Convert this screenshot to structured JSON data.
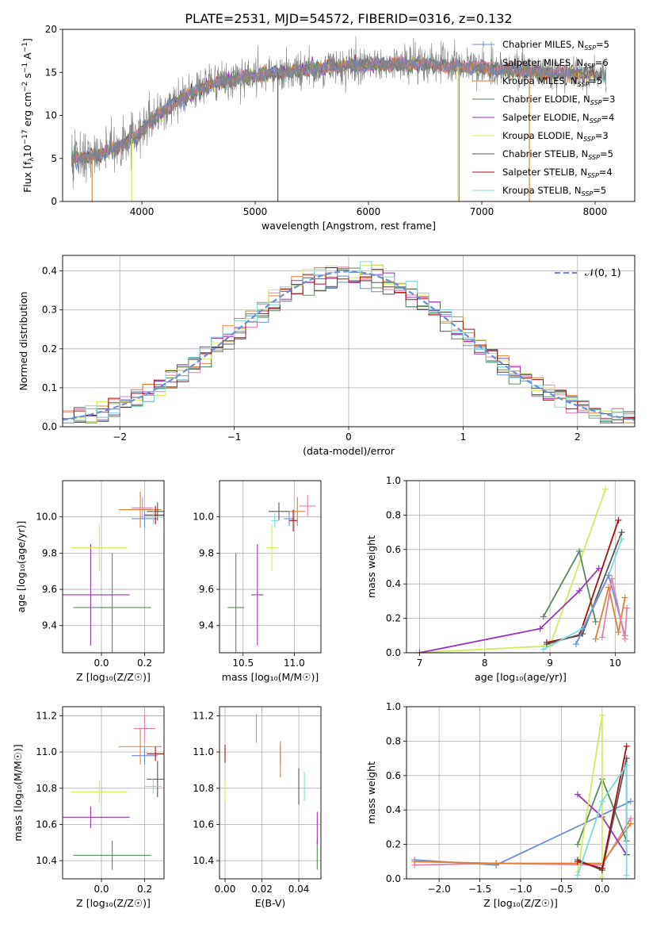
{
  "figure_title": "PLATE=2531, MJD=54572, FIBERID=0316, z=0.132",
  "colors": {
    "chabrier_miles": "#6a8fd6",
    "salpeter_miles": "#e87dae",
    "kroupa_miles": "#e08030",
    "chabrier_elodie": "#5a8a5a",
    "salpeter_elodie": "#9a35b8",
    "kroupa_elodie": "#d4ea5a",
    "chabrier_stelib": "#555555",
    "salpeter_stelib": "#a80f0f",
    "kroupa_stelib": "#7fd9d9",
    "gauss": "#6a8fd6",
    "spectrum_data": "#808080"
  },
  "chart_data": [
    {
      "id": "spectrum",
      "type": "line",
      "title": "PLATE=2531, MJD=54572, FIBERID=0316, z=0.132",
      "xlabel": "wavelength [Angstrom, rest frame]",
      "ylabel_parts": [
        "Flux [f",
        "λ",
        "10",
        "−17",
        " erg cm",
        "−2",
        " s",
        "−1",
        " A",
        "−1",
        "]"
      ],
      "xlim": [
        3300,
        8350
      ],
      "ylim": [
        0,
        20
      ],
      "xticks": [
        4000,
        5000,
        6000,
        7000,
        8000
      ],
      "yticks": [
        0,
        5,
        10,
        15,
        20
      ],
      "legend_position": "top-right",
      "grid": false,
      "continuum": {
        "x": [
          3380,
          3500,
          3650,
          3800,
          3950,
          4100,
          4300,
          4500,
          4700,
          4900,
          5100,
          5300,
          5500,
          5700,
          5900,
          6100,
          6300,
          6500,
          6700,
          6900,
          7100,
          7300,
          7500,
          7700,
          7900,
          8100
        ],
        "y": [
          5.2,
          5.0,
          5.6,
          6.4,
          7.6,
          9.6,
          11.6,
          13.0,
          13.8,
          14.4,
          14.8,
          15.1,
          15.4,
          15.7,
          15.8,
          15.9,
          16.0,
          15.9,
          15.7,
          15.6,
          15.4,
          15.2,
          15.0,
          14.9,
          14.8,
          14.6
        ]
      },
      "series": [
        {
          "name": "Chabrier MILES",
          "nssp": "5",
          "key": "chabrier_miles",
          "marker": "+"
        },
        {
          "name": "Salpeter MILES",
          "nssp": "6",
          "key": "salpeter_miles"
        },
        {
          "name": "Kroupa MILES",
          "nssp": "5",
          "key": "kroupa_miles"
        },
        {
          "name": "Chabrier ELODIE",
          "nssp": "3",
          "key": "chabrier_elodie"
        },
        {
          "name": "Salpeter ELODIE",
          "nssp": "4",
          "key": "salpeter_elodie"
        },
        {
          "name": "Kroupa ELODIE",
          "nssp": "3",
          "key": "kroupa_elodie"
        },
        {
          "name": "Chabrier STELIB",
          "nssp": "5",
          "key": "chabrier_stelib"
        },
        {
          "name": "Salpeter STELIB",
          "nssp": "4",
          "key": "salpeter_stelib"
        },
        {
          "name": "Kroupa STELIB",
          "nssp": "5",
          "key": "kroupa_stelib"
        }
      ],
      "nssp_label": "N",
      "nssp_sub": "SSP"
    },
    {
      "id": "residuals",
      "type": "histogram",
      "xlabel": "(data-model)/error",
      "ylabel": "Normed distribution",
      "xlim": [
        -2.5,
        2.5
      ],
      "ylim": [
        0,
        0.44
      ],
      "xticks": [
        -2,
        -1,
        0,
        1,
        2
      ],
      "yticks": [
        0.0,
        0.1,
        0.2,
        0.3,
        0.4
      ],
      "grid": true,
      "legend_position": "top-right",
      "gauss_label": "𝒩(0, 1)",
      "bin_width": 0.1
    },
    {
      "id": "age_vs_Z",
      "type": "scatter",
      "xlabel": "Z [log₁₀(Z/Z☉)]",
      "ylabel": "age  [log₁₀(age/yr)]",
      "xlim": [
        -0.18,
        0.29
      ],
      "ylim": [
        9.25,
        10.2
      ],
      "xticks": [
        0.0,
        0.2
      ],
      "yticks": [
        9.4,
        9.6,
        9.8,
        10.0
      ],
      "grid": true,
      "points": [
        {
          "key": "chabrier_miles",
          "x": 0.2,
          "y": 9.99,
          "xerr": 0.06,
          "yerr": 0.05
        },
        {
          "key": "salpeter_miles",
          "x": 0.19,
          "y": 10.05,
          "xerr": 0.05,
          "yerr": 0.06
        },
        {
          "key": "kroupa_miles",
          "x": 0.18,
          "y": 10.04,
          "xerr": 0.1,
          "yerr": 0.1
        },
        {
          "key": "chabrier_elodie",
          "x": 0.05,
          "y": 9.5,
          "xerr": 0.18,
          "yerr": 0.3
        },
        {
          "key": "salpeter_elodie",
          "x": -0.05,
          "y": 9.57,
          "xerr": 0.18,
          "yerr": 0.28
        },
        {
          "key": "kroupa_elodie",
          "x": -0.01,
          "y": 9.83,
          "xerr": 0.13,
          "yerr": 0.13
        },
        {
          "key": "chabrier_stelib",
          "x": 0.26,
          "y": 10.03,
          "xerr": 0.05,
          "yerr": 0.05
        },
        {
          "key": "salpeter_stelib",
          "x": 0.25,
          "y": 10.01,
          "xerr": 0.05,
          "yerr": 0.05
        },
        {
          "key": "kroupa_stelib",
          "x": 0.24,
          "y": 10.0,
          "xerr": 0.04,
          "yerr": 0.04
        }
      ]
    },
    {
      "id": "age_vs_mass",
      "type": "scatter",
      "xlabel": "mass [log₁₀(M/M☉)]",
      "ylabel": "",
      "xlim": [
        10.27,
        11.26
      ],
      "ylim": [
        9.25,
        10.2
      ],
      "xticks": [
        10.5,
        11.0
      ],
      "yticks": [
        9.4,
        9.6,
        9.8,
        10.0
      ],
      "grid": true,
      "points": [
        {
          "key": "chabrier_miles",
          "x": 10.95,
          "y": 9.99,
          "xerr": 0.05,
          "yerr": 0.04
        },
        {
          "key": "salpeter_miles",
          "x": 11.13,
          "y": 10.06,
          "xerr": 0.08,
          "yerr": 0.06
        },
        {
          "key": "kroupa_miles",
          "x": 11.03,
          "y": 10.03,
          "xerr": 0.08,
          "yerr": 0.08
        },
        {
          "key": "chabrier_elodie",
          "x": 10.43,
          "y": 9.5,
          "xerr": 0.08,
          "yerr": 0.3
        },
        {
          "key": "salpeter_elodie",
          "x": 10.64,
          "y": 9.57,
          "xerr": 0.06,
          "yerr": 0.28
        },
        {
          "key": "kroupa_elodie",
          "x": 10.78,
          "y": 9.83,
          "xerr": 0.06,
          "yerr": 0.13
        },
        {
          "key": "chabrier_stelib",
          "x": 10.85,
          "y": 10.03,
          "xerr": 0.1,
          "yerr": 0.05
        },
        {
          "key": "salpeter_stelib",
          "x": 10.99,
          "y": 9.98,
          "xerr": 0.04,
          "yerr": 0.06
        },
        {
          "key": "kroupa_stelib",
          "x": 10.81,
          "y": 9.98,
          "xerr": 0.04,
          "yerr": 0.04
        }
      ]
    },
    {
      "id": "massweight_vs_age",
      "type": "line",
      "xlabel": "age  [log₁₀(age/yr)]",
      "ylabel": "mass weight",
      "xlim": [
        6.8,
        10.3
      ],
      "ylim": [
        0,
        1.0
      ],
      "xticks": [
        7,
        8,
        9,
        10
      ],
      "yticks": [
        0.0,
        0.2,
        0.4,
        0.6,
        0.8,
        1.0
      ],
      "grid": true,
      "series": [
        {
          "key": "kroupa_elodie",
          "x": [
            6.95,
            9.0,
            9.85
          ],
          "y": [
            0.0,
            0.04,
            0.95
          ]
        },
        {
          "key": "chabrier_elodie",
          "x": [
            8.9,
            9.45,
            9.7
          ],
          "y": [
            0.21,
            0.59,
            0.18
          ]
        },
        {
          "key": "salpeter_elodie",
          "x": [
            7.0,
            8.85,
            9.45,
            9.75
          ],
          "y": [
            0.0,
            0.14,
            0.36,
            0.49
          ]
        },
        {
          "key": "salpeter_stelib",
          "x": [
            8.95,
            9.45,
            10.05
          ],
          "y": [
            0.06,
            0.1,
            0.77
          ]
        },
        {
          "key": "chabrier_stelib",
          "x": [
            8.95,
            9.5,
            10.1
          ],
          "y": [
            0.05,
            0.11,
            0.7
          ]
        },
        {
          "key": "kroupa_stelib",
          "x": [
            8.9,
            9.5,
            9.9,
            10.1
          ],
          "y": [
            0.02,
            0.14,
            0.45,
            0.66
          ]
        },
        {
          "key": "chabrier_miles",
          "x": [
            9.4,
            9.9,
            10.15
          ],
          "y": [
            0.05,
            0.45,
            0.1
          ]
        },
        {
          "key": "kroupa_miles",
          "x": [
            9.7,
            9.9,
            10.05,
            10.15
          ],
          "y": [
            0.08,
            0.38,
            0.12,
            0.32
          ]
        },
        {
          "key": "salpeter_miles",
          "x": [
            9.8,
            9.95,
            10.15,
            10.18
          ],
          "y": [
            0.09,
            0.43,
            0.08,
            0.26
          ]
        }
      ]
    },
    {
      "id": "mass_vs_Z",
      "type": "scatter",
      "xlabel": "Z [log₁₀(Z/Z☉)]",
      "ylabel": "mass [log₁₀(M/M☉)]",
      "xlim": [
        -0.18,
        0.29
      ],
      "ylim": [
        10.3,
        11.25
      ],
      "xticks": [
        0.0,
        0.2
      ],
      "yticks": [
        10.4,
        10.6,
        10.8,
        11.0,
        11.2
      ],
      "grid": true,
      "points": [
        {
          "key": "chabrier_miles",
          "x": 0.2,
          "y": 10.98,
          "xerr": 0.06,
          "yerr": 0.05
        },
        {
          "key": "salpeter_miles",
          "x": 0.2,
          "y": 11.13,
          "xerr": 0.05,
          "yerr": 0.08
        },
        {
          "key": "kroupa_miles",
          "x": 0.18,
          "y": 11.03,
          "xerr": 0.1,
          "yerr": 0.1
        },
        {
          "key": "chabrier_elodie",
          "x": 0.05,
          "y": 10.43,
          "xerr": 0.18,
          "yerr": 0.08
        },
        {
          "key": "salpeter_elodie",
          "x": -0.05,
          "y": 10.64,
          "xerr": 0.18,
          "yerr": 0.06
        },
        {
          "key": "kroupa_elodie",
          "x": -0.01,
          "y": 10.78,
          "xerr": 0.13,
          "yerr": 0.06
        },
        {
          "key": "chabrier_stelib",
          "x": 0.26,
          "y": 10.85,
          "xerr": 0.05,
          "yerr": 0.1
        },
        {
          "key": "salpeter_stelib",
          "x": 0.25,
          "y": 10.99,
          "xerr": 0.04,
          "yerr": 0.04
        },
        {
          "key": "kroupa_stelib",
          "x": 0.24,
          "y": 10.81,
          "xerr": 0.04,
          "yerr": 0.04
        }
      ]
    },
    {
      "id": "mass_vs_ebv",
      "type": "scatter",
      "xlabel": "E(B-V)",
      "ylabel": "",
      "xlim": [
        -0.003,
        0.052
      ],
      "ylim": [
        10.3,
        11.25
      ],
      "xticks": [
        0.0,
        0.02,
        0.04
      ],
      "yticks": [
        10.4,
        10.6,
        10.8,
        11.0,
        11.2
      ],
      "grid": true,
      "points": [
        {
          "key": "chabrier_miles",
          "x": 0.03,
          "y": 10.98,
          "xerr": 0,
          "yerr": 0.05
        },
        {
          "key": "salpeter_miles",
          "x": 0.017,
          "y": 11.13,
          "xerr": 0,
          "yerr": 0.08
        },
        {
          "key": "kroupa_miles",
          "x": 0.03,
          "y": 10.96,
          "xerr": 0,
          "yerr": 0.1
        },
        {
          "key": "chabrier_elodie",
          "x": 0.05,
          "y": 10.43,
          "xerr": 0,
          "yerr": 0.08
        },
        {
          "key": "salpeter_elodie",
          "x": 0.05,
          "y": 10.58,
          "xerr": 0,
          "yerr": 0.09
        },
        {
          "key": "kroupa_elodie",
          "x": 0.0,
          "y": 10.78,
          "xerr": 0,
          "yerr": 0.06
        },
        {
          "key": "chabrier_stelib",
          "x": 0.04,
          "y": 10.81,
          "xerr": 0,
          "yerr": 0.1
        },
        {
          "key": "salpeter_stelib",
          "x": 0.0,
          "y": 10.99,
          "xerr": 0,
          "yerr": 0.05
        },
        {
          "key": "kroupa_stelib",
          "x": 0.043,
          "y": 10.81,
          "xerr": 0,
          "yerr": 0.08
        }
      ]
    },
    {
      "id": "massweight_vs_Z",
      "type": "line",
      "xlabel": "Z [log₁₀(Z/Z☉)]",
      "ylabel": "mass weight",
      "xlim": [
        -2.4,
        0.4
      ],
      "ylim": [
        0,
        1.0
      ],
      "xticks": [
        -2.0,
        -1.5,
        -1.0,
        -0.5,
        0.0
      ],
      "yticks": [
        0.0,
        0.2,
        0.4,
        0.6,
        0.8,
        1.0
      ],
      "grid": true,
      "series": [
        {
          "key": "chabrier_miles",
          "x": [
            -2.3,
            -1.3,
            0.35
          ],
          "y": [
            0.11,
            0.08,
            0.45
          ]
        },
        {
          "key": "salpeter_miles",
          "x": [
            -2.3,
            -1.3,
            0.0,
            0.35
          ],
          "y": [
            0.08,
            0.09,
            0.08,
            0.35
          ]
        },
        {
          "key": "kroupa_miles",
          "x": [
            -2.3,
            -1.3,
            0.0,
            0.35
          ],
          "y": [
            0.1,
            0.09,
            0.09,
            0.32
          ]
        },
        {
          "key": "chabrier_elodie",
          "x": [
            -0.3,
            0.0,
            0.3
          ],
          "y": [
            0.2,
            0.58,
            0.22
          ]
        },
        {
          "key": "salpeter_elodie",
          "x": [
            -0.3,
            0.0,
            0.3
          ],
          "y": [
            0.49,
            0.36,
            0.14
          ]
        },
        {
          "key": "kroupa_elodie",
          "x": [
            -0.3,
            0.0,
            0.0
          ],
          "y": [
            0.04,
            0.95,
            0.01
          ]
        },
        {
          "key": "chabrier_stelib",
          "x": [
            -0.3,
            0.0,
            0.3,
            0.3
          ],
          "y": [
            0.11,
            0.05,
            0.7,
            0.14
          ]
        },
        {
          "key": "salpeter_stelib",
          "x": [
            -0.3,
            0.0,
            0.3
          ],
          "y": [
            0.1,
            0.06,
            0.77
          ]
        },
        {
          "key": "kroupa_stelib",
          "x": [
            -0.3,
            0.0,
            0.3,
            0.3
          ],
          "y": [
            0.02,
            0.45,
            0.66,
            0.02
          ]
        }
      ]
    }
  ]
}
